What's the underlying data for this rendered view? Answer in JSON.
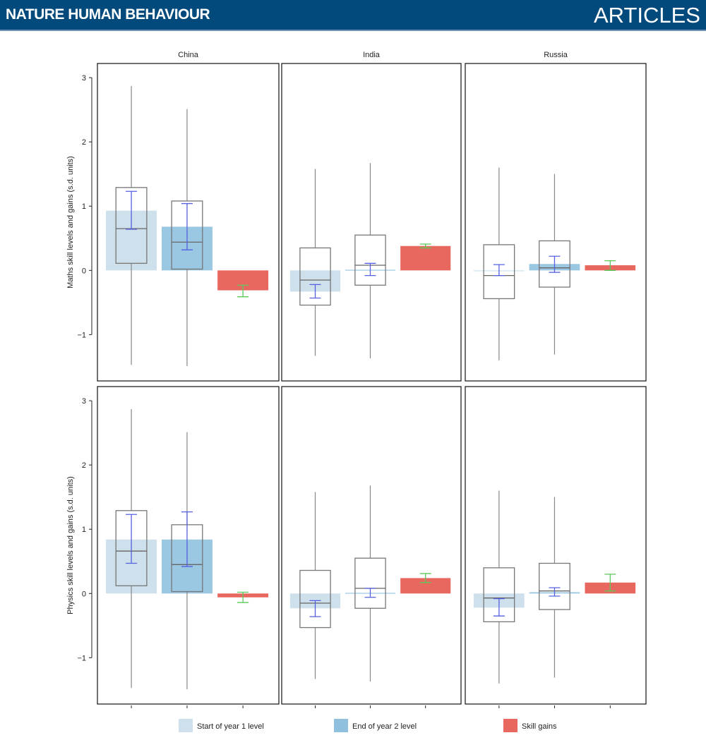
{
  "header": {
    "journal": "NATURE HUMAN BEHAVIOUR",
    "section": "ARTICLES"
  },
  "chart_data": {
    "type": "bar+boxplot",
    "columns": [
      "China",
      "India",
      "Russia"
    ],
    "rows": [
      {
        "ylabel": "Maths skill levels and gains (s.d. units)"
      },
      {
        "ylabel": "Physics skill levels and gains (s.d. units)"
      }
    ],
    "yticks": [
      -1,
      0,
      1,
      2,
      3
    ],
    "ylim": [
      -1.72,
      3.22
    ],
    "grid": false,
    "legend": {
      "position": "bottom",
      "items": [
        {
          "label": "Start of year 1 level",
          "color": "#cde0ec"
        },
        {
          "label": "End of year 2 level",
          "color": "#8fc1df"
        },
        {
          "label": "Skill gains",
          "color": "#e8685f"
        }
      ]
    },
    "colors": {
      "ci_levels": "#5560e0",
      "ci_gains": "#5cc85a",
      "box": "#7a7a7a"
    },
    "panels": [
      {
        "row": 0,
        "col": 0,
        "start": {
          "bar": 0.93,
          "box": [
            -1.47,
            0.11,
            0.65,
            1.29,
            2.87
          ],
          "ci": [
            0.64,
            1.23
          ]
        },
        "end": {
          "bar": 0.68,
          "box": [
            -1.49,
            0.02,
            0.44,
            1.08,
            2.51
          ],
          "ci": [
            0.32,
            1.04
          ]
        },
        "gain": {
          "bar": -0.31,
          "ci": [
            -0.41,
            -0.23
          ]
        }
      },
      {
        "row": 0,
        "col": 1,
        "start": {
          "bar": -0.33,
          "box": [
            -1.33,
            -0.54,
            -0.15,
            0.35,
            1.58
          ],
          "ci": [
            -0.43,
            -0.22
          ]
        },
        "end": {
          "bar": 0.01,
          "box": [
            -1.37,
            -0.23,
            0.08,
            0.55,
            1.67
          ],
          "ci": [
            -0.08,
            0.11
          ]
        },
        "gain": {
          "bar": 0.38,
          "ci": [
            0.35,
            0.41
          ]
        }
      },
      {
        "row": 0,
        "col": 2,
        "start": {
          "bar": -0.01,
          "box": [
            -1.4,
            -0.44,
            -0.08,
            0.4,
            1.6
          ],
          "ci": [
            -0.08,
            0.09
          ]
        },
        "end": {
          "bar": 0.1,
          "box": [
            -1.31,
            -0.26,
            0.04,
            0.46,
            1.5
          ],
          "ci": [
            -0.03,
            0.22
          ]
        },
        "gain": {
          "bar": 0.08,
          "ci": [
            0.0,
            0.15
          ]
        }
      },
      {
        "row": 1,
        "col": 0,
        "start": {
          "bar": 0.84,
          "box": [
            -1.47,
            0.12,
            0.66,
            1.29,
            2.87
          ],
          "ci": [
            0.47,
            1.23
          ]
        },
        "end": {
          "bar": 0.84,
          "box": [
            -1.49,
            0.03,
            0.45,
            1.07,
            2.51
          ],
          "ci": [
            0.42,
            1.27
          ]
        },
        "gain": {
          "bar": -0.06,
          "ci": [
            -0.14,
            0.02
          ]
        }
      },
      {
        "row": 1,
        "col": 1,
        "start": {
          "bar": -0.23,
          "box": [
            -1.33,
            -0.53,
            -0.15,
            0.36,
            1.58
          ],
          "ci": [
            -0.36,
            -0.11
          ]
        },
        "end": {
          "bar": 0.01,
          "box": [
            -1.37,
            -0.23,
            0.08,
            0.55,
            1.68
          ],
          "ci": [
            -0.06,
            0.08
          ]
        },
        "gain": {
          "bar": 0.24,
          "ci": [
            0.17,
            0.31
          ]
        }
      },
      {
        "row": 1,
        "col": 2,
        "start": {
          "bar": -0.22,
          "box": [
            -1.4,
            -0.44,
            -0.07,
            0.4,
            1.6
          ],
          "ci": [
            -0.35,
            -0.08
          ]
        },
        "end": {
          "bar": 0.02,
          "box": [
            -1.31,
            -0.25,
            0.04,
            0.47,
            1.5
          ],
          "ci": [
            -0.04,
            0.09
          ]
        },
        "gain": {
          "bar": 0.17,
          "ci": [
            0.04,
            0.3
          ]
        }
      }
    ]
  }
}
